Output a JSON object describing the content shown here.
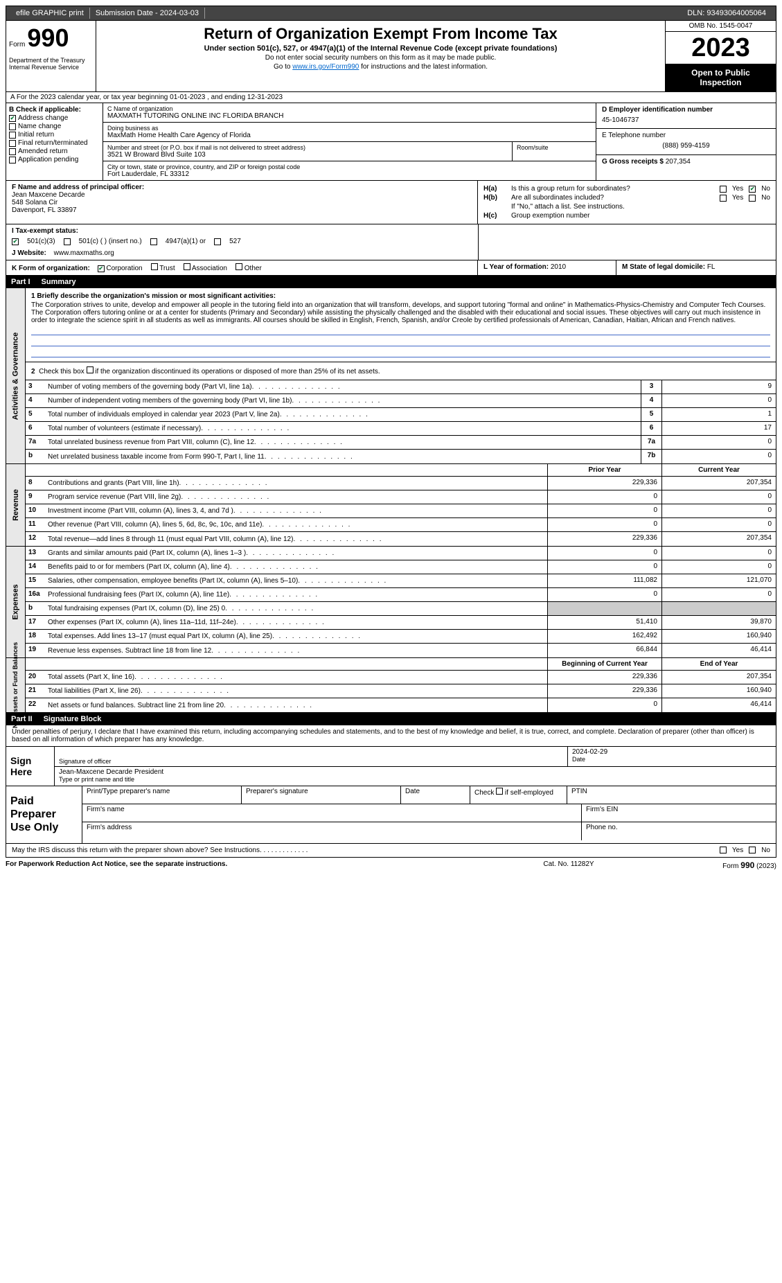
{
  "topbar": {
    "efile": "efile GRAPHIC print",
    "submission": "Submission Date - 2024-03-03",
    "dln": "DLN: 93493064005064"
  },
  "header": {
    "form_label": "Form",
    "form_num": "990",
    "dept": "Department of the Treasury\nInternal Revenue Service",
    "title": "Return of Organization Exempt From Income Tax",
    "subtitle": "Under section 501(c), 527, or 4947(a)(1) of the Internal Revenue Code (except private foundations)",
    "note1": "Do not enter social security numbers on this form as it may be made public.",
    "note2_pre": "Go to ",
    "note2_link": "www.irs.gov/Form990",
    "note2_post": " for instructions and the latest information.",
    "omb": "OMB No. 1545-0047",
    "year": "2023",
    "open": "Open to Public Inspection"
  },
  "line_a": "A For the 2023 calendar year, or tax year beginning 01-01-2023    , and ending 12-31-2023",
  "sec_b": {
    "label": "B Check if applicable:",
    "items": [
      "Address change",
      "Name change",
      "Initial return",
      "Final return/terminated",
      "Amended return",
      "Application pending"
    ],
    "checked": [
      true,
      false,
      false,
      false,
      false,
      false
    ]
  },
  "sec_c": {
    "name_label": "C Name of organization",
    "name": "MAXMATH TUTORING ONLINE INC FLORIDA BRANCH",
    "dba_label": "Doing business as",
    "dba": "MaxMath Home Health Care Agency of Florida",
    "addr_label": "Number and street (or P.O. box if mail is not delivered to street address)",
    "addr": "3521 W Broward Blvd Suite 103",
    "room_label": "Room/suite",
    "city_label": "City or town, state or province, country, and ZIP or foreign postal code",
    "city": "Fort Lauderdale, FL  33312"
  },
  "sec_d": {
    "ein_label": "D Employer identification number",
    "ein": "45-1046737",
    "tel_label": "E Telephone number",
    "tel": "(888) 959-4159",
    "gross_label": "G Gross receipts $",
    "gross": "207,354"
  },
  "sec_f": {
    "label": "F Name and address of principal officer:",
    "name": "Jean Maxcene Decarde",
    "addr1": "548 Solana Cir",
    "addr2": "Davenport, FL  33897"
  },
  "sec_h": {
    "ha_label": "H(a)",
    "ha_text": "Is this a group return for subordinates?",
    "hb_label": "H(b)",
    "hb_text": "Are all subordinates included?",
    "hb_note": "If \"No,\" attach a list. See instructions.",
    "hc_label": "H(c)",
    "hc_text": "Group exemption number",
    "yes": "Yes",
    "no": "No"
  },
  "sec_i": {
    "label": "I   Tax-exempt status:",
    "opt1": "501(c)(3)",
    "opt2": "501(c) (  ) (insert no.)",
    "opt3": "4947(a)(1) or",
    "opt4": "527"
  },
  "sec_j": {
    "label": "J   Website:",
    "val": "www.maxmaths.org"
  },
  "sec_k": {
    "label": "K Form of organization:",
    "opts": [
      "Corporation",
      "Trust",
      "Association",
      "Other"
    ],
    "l_label": "L Year of formation:",
    "l_val": "2010",
    "m_label": "M State of legal domicile:",
    "m_val": "FL"
  },
  "part1": {
    "num": "Part I",
    "title": "Summary"
  },
  "mission": {
    "label": "1  Briefly describe the organization's mission or most significant activities:",
    "text": "The Corporation strives to unite, develop and empower all people in the tutoring field into an organization that will transform, develops, and support tutoring \"formal and online\" in Mathematics-Physics-Chemistry and Computer Tech Courses. The Corporation offers tutoring online or at a center for students (Primary and Secondary) while assisting the physically challenged and the disabled with their educational and social issues. These objectives will carry out much insistence in order to integrate the science spirit in all students as well as immigrants. All courses should be skilled in English, French, Spanish, and/or Creole by certified professionals of American, Canadian, Haitian, African and French natives."
  },
  "line2": "Check this box      if the organization discontinued its operations or disposed of more than 25% of its net assets.",
  "gov_rows": [
    {
      "n": "3",
      "desc": "Number of voting members of the governing body (Part VI, line 1a)",
      "box": "3",
      "val": "9"
    },
    {
      "n": "4",
      "desc": "Number of independent voting members of the governing body (Part VI, line 1b)",
      "box": "4",
      "val": "0"
    },
    {
      "n": "5",
      "desc": "Total number of individuals employed in calendar year 2023 (Part V, line 2a)",
      "box": "5",
      "val": "1"
    },
    {
      "n": "6",
      "desc": "Total number of volunteers (estimate if necessary)",
      "box": "6",
      "val": "17"
    },
    {
      "n": "7a",
      "desc": "Total unrelated business revenue from Part VIII, column (C), line 12",
      "box": "7a",
      "val": "0"
    },
    {
      "n": "b",
      "desc": "Net unrelated business taxable income from Form 990-T, Part I, line 11",
      "box": "7b",
      "val": "0"
    }
  ],
  "hdr_prior": "Prior Year",
  "hdr_current": "Current Year",
  "rev_rows": [
    {
      "n": "8",
      "desc": "Contributions and grants (Part VIII, line 1h)",
      "prior": "229,336",
      "cur": "207,354"
    },
    {
      "n": "9",
      "desc": "Program service revenue (Part VIII, line 2g)",
      "prior": "0",
      "cur": "0"
    },
    {
      "n": "10",
      "desc": "Investment income (Part VIII, column (A), lines 3, 4, and 7d )",
      "prior": "0",
      "cur": "0"
    },
    {
      "n": "11",
      "desc": "Other revenue (Part VIII, column (A), lines 5, 6d, 8c, 9c, 10c, and 11e)",
      "prior": "0",
      "cur": "0"
    },
    {
      "n": "12",
      "desc": "Total revenue—add lines 8 through 11 (must equal Part VIII, column (A), line 12)",
      "prior": "229,336",
      "cur": "207,354"
    }
  ],
  "exp_rows": [
    {
      "n": "13",
      "desc": "Grants and similar amounts paid (Part IX, column (A), lines 1–3 )",
      "prior": "0",
      "cur": "0"
    },
    {
      "n": "14",
      "desc": "Benefits paid to or for members (Part IX, column (A), line 4)",
      "prior": "0",
      "cur": "0"
    },
    {
      "n": "15",
      "desc": "Salaries, other compensation, employee benefits (Part IX, column (A), lines 5–10)",
      "prior": "111,082",
      "cur": "121,070"
    },
    {
      "n": "16a",
      "desc": "Professional fundraising fees (Part IX, column (A), line 11e)",
      "prior": "0",
      "cur": "0"
    },
    {
      "n": "b",
      "desc": "Total fundraising expenses (Part IX, column (D), line 25) 0",
      "prior": "",
      "cur": "",
      "shaded": true
    },
    {
      "n": "17",
      "desc": "Other expenses (Part IX, column (A), lines 11a–11d, 11f–24e)",
      "prior": "51,410",
      "cur": "39,870"
    },
    {
      "n": "18",
      "desc": "Total expenses. Add lines 13–17 (must equal Part IX, column (A), line 25)",
      "prior": "162,492",
      "cur": "160,940"
    },
    {
      "n": "19",
      "desc": "Revenue less expenses. Subtract line 18 from line 12",
      "prior": "66,844",
      "cur": "46,414"
    }
  ],
  "hdr_begin": "Beginning of Current Year",
  "hdr_end": "End of Year",
  "net_rows": [
    {
      "n": "20",
      "desc": "Total assets (Part X, line 16)",
      "prior": "229,336",
      "cur": "207,354"
    },
    {
      "n": "21",
      "desc": "Total liabilities (Part X, line 26)",
      "prior": "229,336",
      "cur": "160,940"
    },
    {
      "n": "22",
      "desc": "Net assets or fund balances. Subtract line 21 from line 20",
      "prior": "0",
      "cur": "46,414"
    }
  ],
  "vtabs": {
    "gov": "Activities & Governance",
    "rev": "Revenue",
    "exp": "Expenses",
    "net": "Net Assets or Fund Balances"
  },
  "part2": {
    "num": "Part II",
    "title": "Signature Block"
  },
  "sig_decl": "Under penalties of perjury, I declare that I have examined this return, including accompanying schedules and statements, and to the best of my knowledge and belief, it is true, correct, and complete. Declaration of preparer (other than officer) is based on all information of which preparer has any knowledge.",
  "sign": {
    "label": "Sign Here",
    "date": "2024-02-29",
    "sig_label": "Signature of officer",
    "name": "Jean-Maxcene Decarde President",
    "name_label": "Type or print name and title",
    "date_label": "Date"
  },
  "prep": {
    "label": "Paid Preparer Use Only",
    "h1": "Print/Type preparer's name",
    "h2": "Preparer's signature",
    "h3": "Date",
    "h4_pre": "Check",
    "h4_post": "if self-employed",
    "h5": "PTIN",
    "firm_name": "Firm's name",
    "firm_ein": "Firm's EIN",
    "firm_addr": "Firm's address",
    "phone": "Phone no."
  },
  "discuss": {
    "text": "May the IRS discuss this return with the preparer shown above? See Instructions.",
    "yes": "Yes",
    "no": "No"
  },
  "bottom": {
    "notice": "For Paperwork Reduction Act Notice, see the separate instructions.",
    "cat": "Cat. No. 11282Y",
    "form": "Form 990 (2023)"
  }
}
